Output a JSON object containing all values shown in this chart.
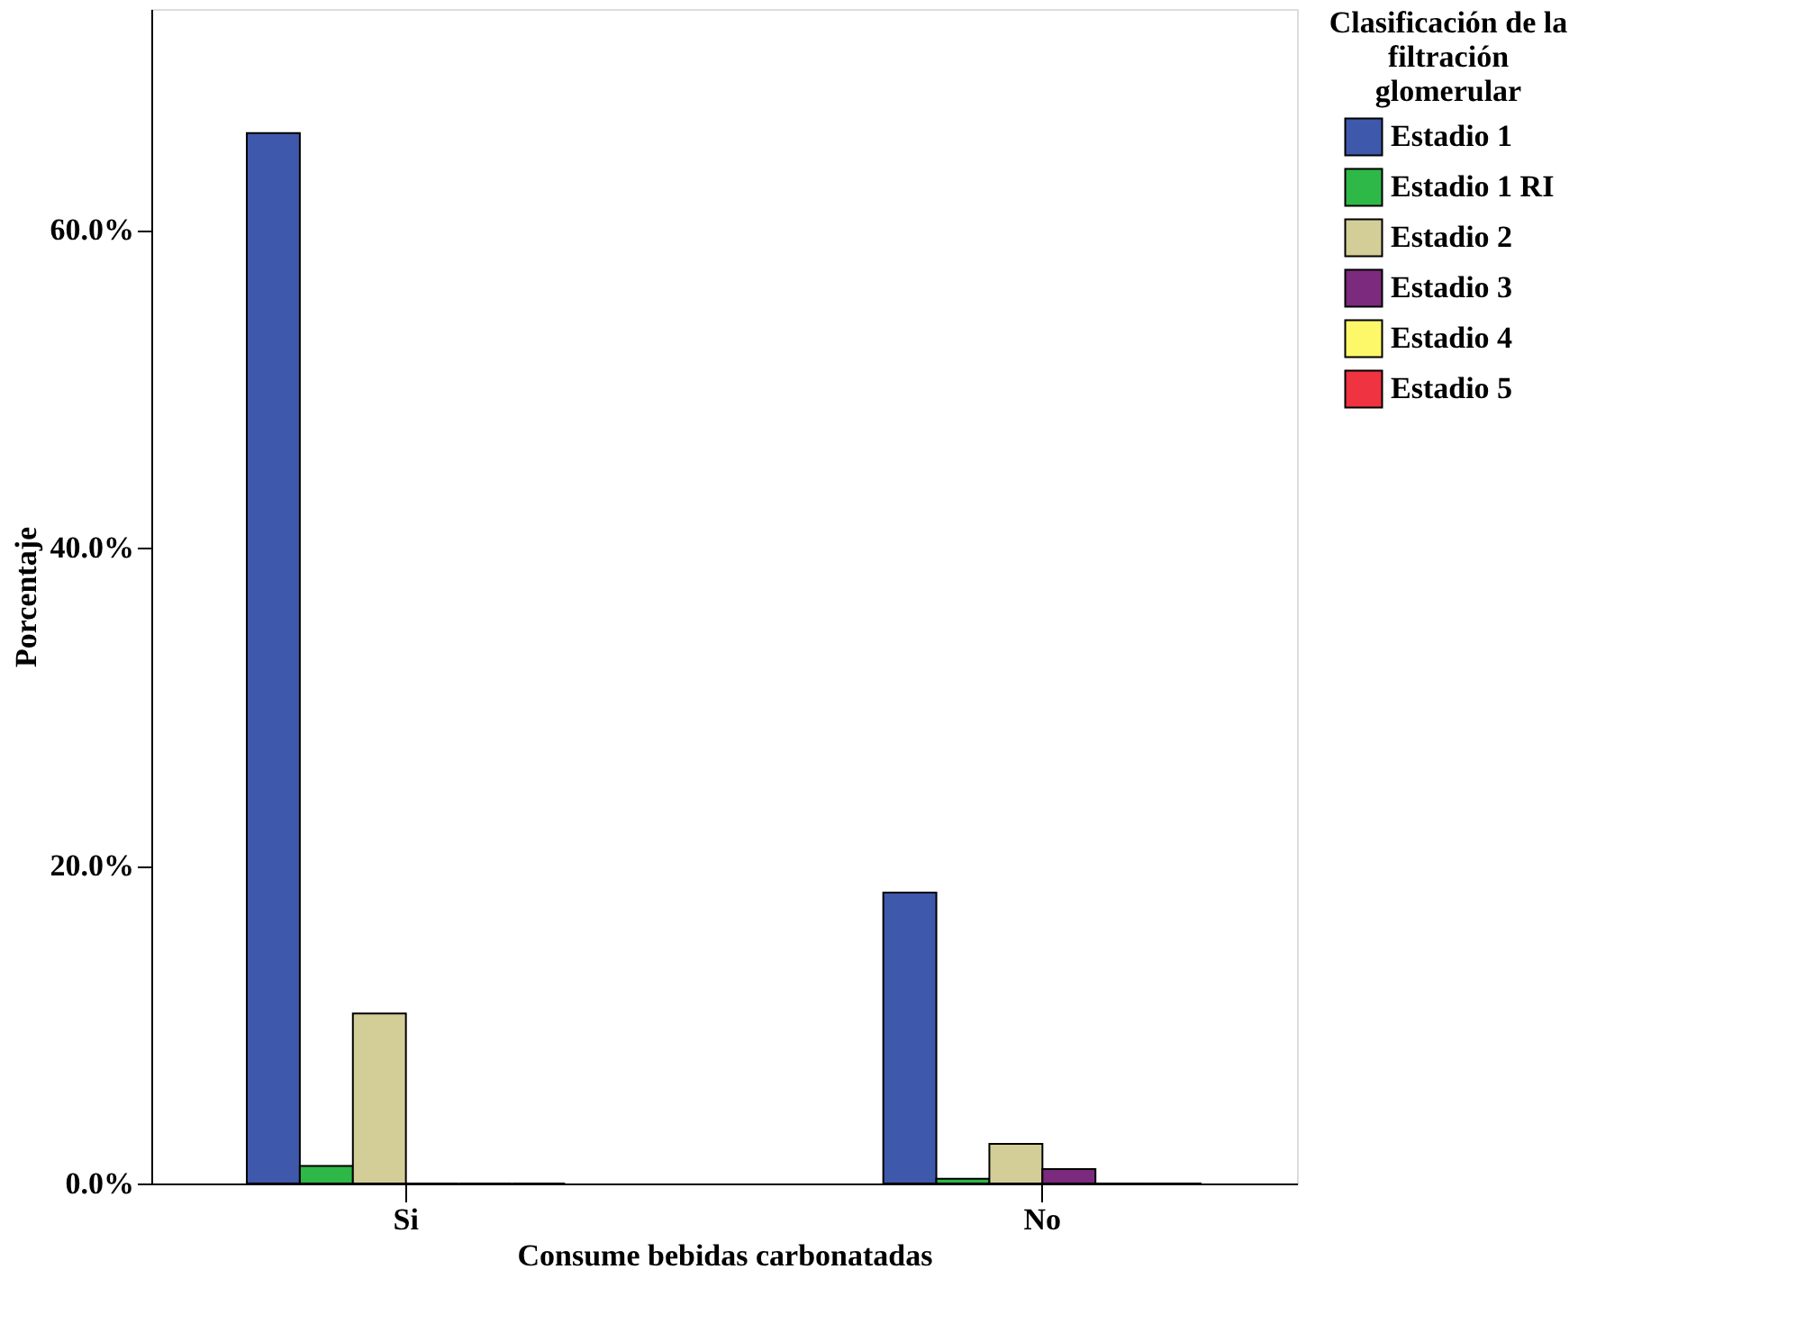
{
  "chart_data": {
    "type": "bar",
    "xlabel": "Consume bebidas carbonatadas",
    "ylabel": "Porcentaje",
    "legend_title": "Clasificación de la filtración glomerular",
    "categories": [
      "Si",
      "No"
    ],
    "series": [
      {
        "name": "Estadio 1",
        "color": "#3e58ac",
        "values": [
          66.1,
          18.3
        ]
      },
      {
        "name": "Estadio 1 RI",
        "color": "#2eb848",
        "values": [
          1.1,
          0.3
        ]
      },
      {
        "name": "Estadio 2",
        "color": "#d3ce97",
        "values": [
          10.7,
          2.5
        ]
      },
      {
        "name": "Estadio 3",
        "color": "#7b2a7e",
        "values": [
          0,
          0.9
        ]
      },
      {
        "name": "Estadio 4",
        "color": "#fcf869",
        "values": [
          0,
          0
        ]
      },
      {
        "name": "Estadio 5",
        "color": "#ef3340",
        "values": [
          0,
          0
        ]
      }
    ],
    "ylim": [
      0,
      73.9
    ],
    "yticks": [
      {
        "value": 0,
        "label": "0.0%"
      },
      {
        "value": 20,
        "label": "20.0%"
      },
      {
        "value": 40,
        "label": "40.0%"
      },
      {
        "value": 60,
        "label": "60.0%"
      }
    ],
    "grid": false,
    "legend": "right"
  }
}
